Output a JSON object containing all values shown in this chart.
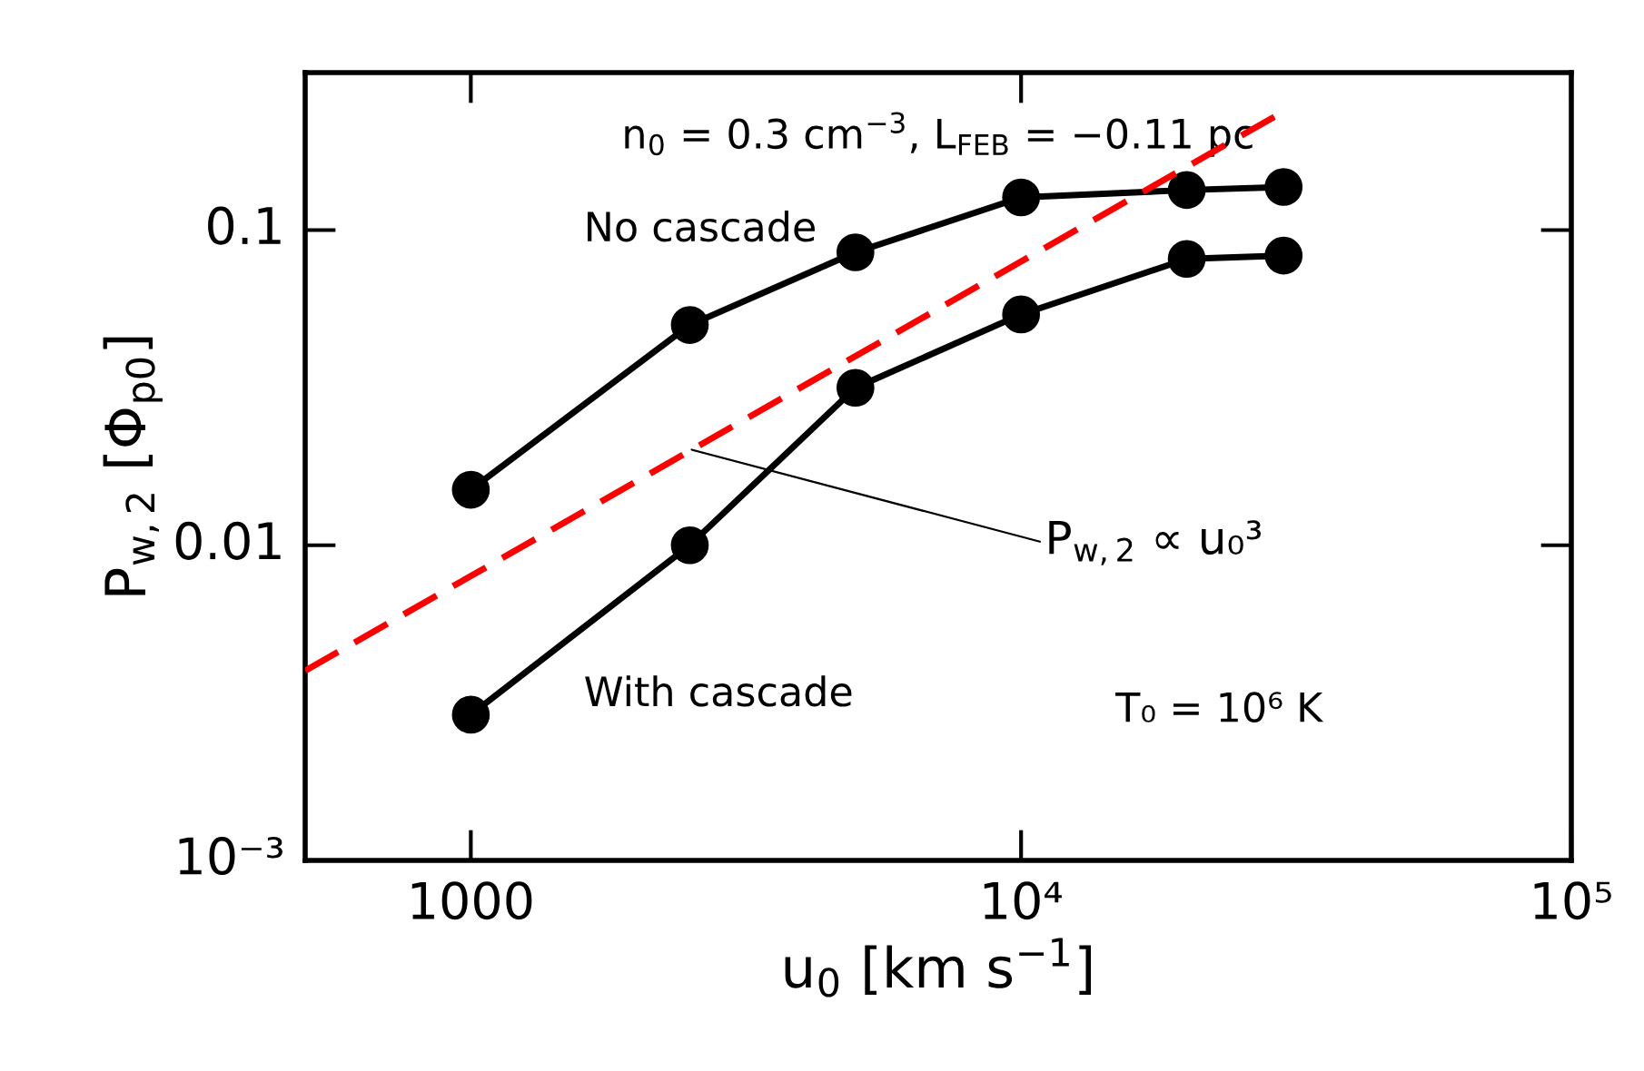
{
  "chart_data": {
    "type": "line",
    "xlabel": "u$_{0}$ [km s$^{−1}$]",
    "ylabel": "P$_{w,2}$ [Φ$_{p0}$]",
    "log": "xy",
    "grid": false,
    "xlim": [
      500,
      100000
    ],
    "ylim": [
      0.001,
      0.316
    ],
    "xticks": [
      1000,
      {
        "value": 10000,
        "label": "10⁴"
      },
      {
        "value": 100000,
        "label": "10⁵"
      }
    ],
    "yticks": [
      {
        "value": 0.001,
        "label": "10⁻³"
      },
      0.01,
      0.1
    ],
    "x": [
      1000,
      2500,
      5000,
      10000,
      20000,
      30000
    ],
    "series": [
      {
        "color": "#000000",
        "marker": "circle",
        "line_style": "solid",
        "values": [
          0.015,
          0.05,
          0.085,
          0.127,
          0.134,
          0.137
        ]
      },
      {
        "color": "#000000",
        "marker": "circle",
        "line_style": "solid",
        "values": [
          0.0029,
          0.01,
          0.0316,
          0.054,
          0.081,
          0.083
        ]
      },
      {
        "color": "#ff0000",
        "marker": "none",
        "line_style": "dashed",
        "x": [
          500,
          29000
        ],
        "values": [
          0.004,
          0.23
        ]
      }
    ],
    "annotations": [
      "n$_{0}$ = 0.3 cm$^{−3}$, L$_{FEB}$ = −0.11 pc",
      "No cascade",
      "With cascade",
      "T₀ = 10⁶ K",
      {
        "text": "P$_{w,2}$ ∝ u₀³",
        "x": 2520,
        "y": 0.0201
      }
    ]
  }
}
